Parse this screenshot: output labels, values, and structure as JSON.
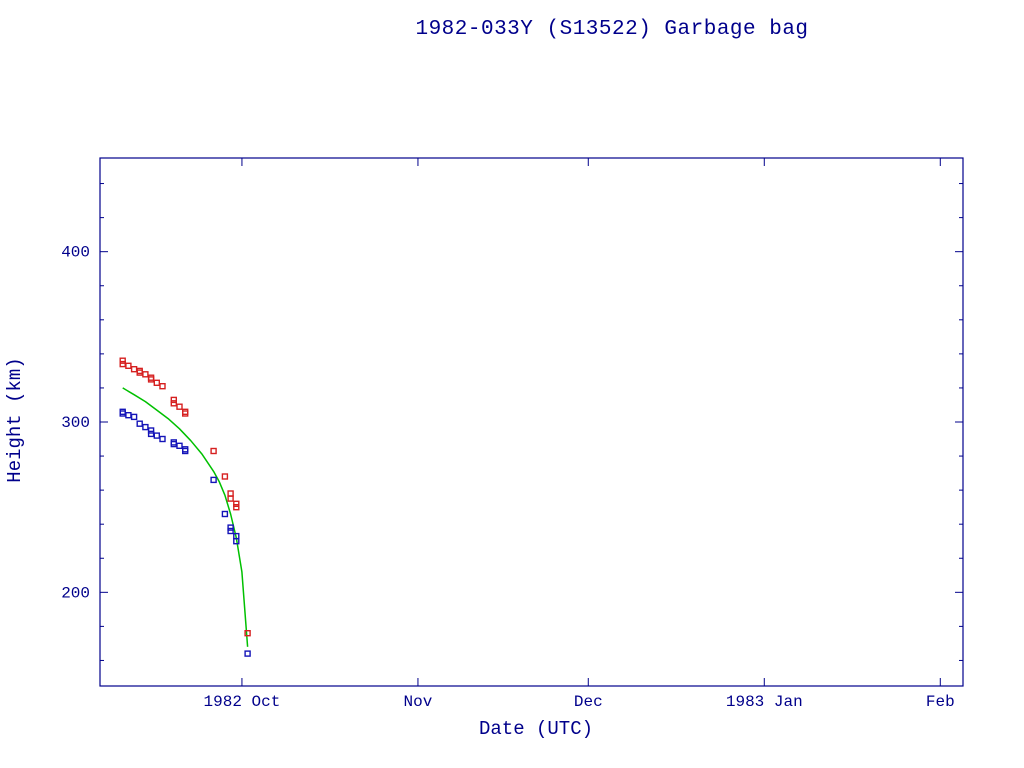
{
  "chart_data": {
    "type": "scatter",
    "title": "1982-033Y (S13522) Garbage bag",
    "xlabel": "Date (UTC)",
    "ylabel": "Height (km)",
    "colors": {
      "axis": "#00008b",
      "apogee": "#d62020",
      "perigee": "#1414b8",
      "mean_line": "#00c000",
      "background": "#ffffff"
    },
    "xlim": [
      "1982-09-06",
      "1983-02-05"
    ],
    "ylim": [
      145,
      455
    ],
    "yticks": {
      "major": [
        200,
        300,
        400
      ],
      "minor_step": 20
    },
    "xticks": [
      {
        "date": "1982-10-01",
        "label": "1982 Oct"
      },
      {
        "date": "1982-11-01",
        "label": "Nov"
      },
      {
        "date": "1982-12-01",
        "label": "Dec"
      },
      {
        "date": "1983-01-01",
        "label": "1983 Jan"
      },
      {
        "date": "1983-02-01",
        "label": "Feb"
      }
    ],
    "grid": false,
    "legend": "none",
    "series": [
      {
        "name": "mean-height",
        "type": "line",
        "color_key": "mean_line",
        "points": [
          [
            "1982-09-10",
            320
          ],
          [
            "1982-09-12",
            316
          ],
          [
            "1982-09-14",
            312
          ],
          [
            "1982-09-16",
            307
          ],
          [
            "1982-09-18",
            302
          ],
          [
            "1982-09-20",
            296
          ],
          [
            "1982-09-22",
            289
          ],
          [
            "1982-09-24",
            281
          ],
          [
            "1982-09-26",
            271
          ],
          [
            "1982-09-27",
            265
          ],
          [
            "1982-09-28",
            257
          ],
          [
            "1982-09-29",
            246
          ],
          [
            "1982-09-30",
            232
          ],
          [
            "1982-10-01",
            212
          ],
          [
            "1982-10-02",
            168
          ]
        ]
      },
      {
        "name": "apogee",
        "type": "scatter",
        "marker": "open-square",
        "color_key": "apogee",
        "points": [
          [
            "1982-09-10",
            336
          ],
          [
            "1982-09-10",
            334
          ],
          [
            "1982-09-11",
            333
          ],
          [
            "1982-09-12",
            331
          ],
          [
            "1982-09-13",
            330
          ],
          [
            "1982-09-13",
            329
          ],
          [
            "1982-09-14",
            328
          ],
          [
            "1982-09-15",
            326
          ],
          [
            "1982-09-15",
            325
          ],
          [
            "1982-09-16",
            323
          ],
          [
            "1982-09-17",
            321
          ],
          [
            "1982-09-19",
            313
          ],
          [
            "1982-09-19",
            311
          ],
          [
            "1982-09-20",
            309
          ],
          [
            "1982-09-21",
            306
          ],
          [
            "1982-09-21",
            305
          ],
          [
            "1982-09-26",
            283
          ],
          [
            "1982-09-28",
            268
          ],
          [
            "1982-09-29",
            258
          ],
          [
            "1982-09-29",
            255
          ],
          [
            "1982-09-30",
            252
          ],
          [
            "1982-09-30",
            250
          ],
          [
            "1982-10-02",
            176
          ]
        ]
      },
      {
        "name": "perigee",
        "type": "scatter",
        "marker": "open-square",
        "color_key": "perigee",
        "points": [
          [
            "1982-09-10",
            306
          ],
          [
            "1982-09-10",
            305
          ],
          [
            "1982-09-11",
            304
          ],
          [
            "1982-09-12",
            303
          ],
          [
            "1982-09-13",
            299
          ],
          [
            "1982-09-14",
            297
          ],
          [
            "1982-09-15",
            295
          ],
          [
            "1982-09-15",
            293
          ],
          [
            "1982-09-16",
            292
          ],
          [
            "1982-09-17",
            290
          ],
          [
            "1982-09-19",
            288
          ],
          [
            "1982-09-19",
            287
          ],
          [
            "1982-09-20",
            286
          ],
          [
            "1982-09-21",
            284
          ],
          [
            "1982-09-21",
            283
          ],
          [
            "1982-09-26",
            266
          ],
          [
            "1982-09-28",
            246
          ],
          [
            "1982-09-29",
            238
          ],
          [
            "1982-09-29",
            236
          ],
          [
            "1982-09-30",
            233
          ],
          [
            "1982-09-30",
            230
          ],
          [
            "1982-10-02",
            164
          ]
        ]
      }
    ]
  }
}
